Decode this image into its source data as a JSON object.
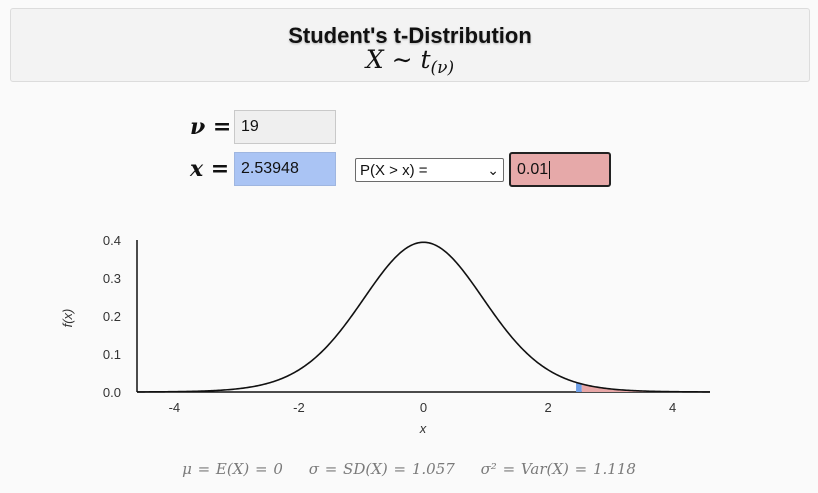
{
  "header": {
    "title": "Student's t-Distribution",
    "formula_main": "X ∼ t",
    "formula_sub": "(ν)"
  },
  "inputs": {
    "nu_label": "ν =",
    "nu_value": "19",
    "x_label": "x =",
    "x_value": "2.53948",
    "prob_select": "P(X > x) =",
    "prob_value": "0.01"
  },
  "chart_data": {
    "type": "area",
    "distribution": "Student's t",
    "df": 19,
    "x_min": -4.6,
    "x_max": 4.6,
    "ylim": [
      0,
      0.4
    ],
    "x_ticks": [
      -4,
      -2,
      0,
      2,
      4
    ],
    "y_ticks": [
      "0.0",
      "0.1",
      "0.2",
      "0.3",
      "0.4"
    ],
    "xlabel": "x",
    "ylabel": "f(x)",
    "peak_density": 0.394,
    "shaded_from_x": 2.53948,
    "shaded_probability": 0.01,
    "colors": {
      "curve": "#111111",
      "tail_fill": "#e8a7a7",
      "marker": "#6d9ee6"
    }
  },
  "moments": {
    "mean": "μ = E(X) = 0",
    "sd": "σ = SD(X) = 1.057",
    "var": "σ² = Var(X) = 1.118"
  }
}
